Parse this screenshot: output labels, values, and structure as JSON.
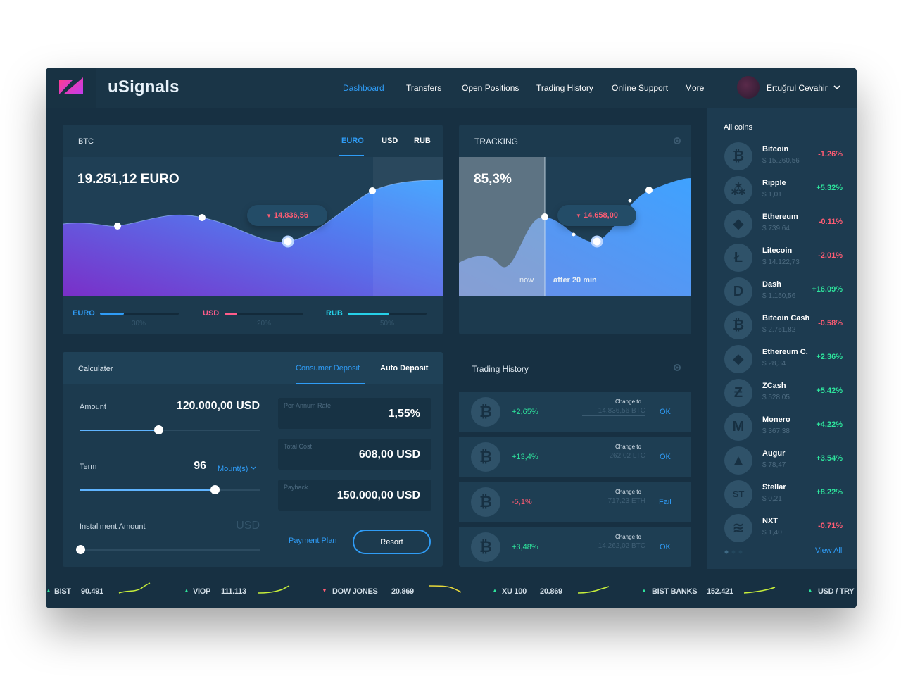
{
  "brand": {
    "name": "uSignals"
  },
  "nav": {
    "items": [
      "Dashboard",
      "Transfers",
      "Open Positions",
      "Trading History",
      "Online Support",
      "More"
    ],
    "user": "Ertuğrul Cevahir"
  },
  "btc_panel": {
    "title": "BTC",
    "tabs": [
      "EURO",
      "USD",
      "RUB"
    ],
    "value": "19.251,12 EURO",
    "tooltip": "14.836,56",
    "tooltip_arrow": "▼",
    "legend": [
      {
        "label": "EURO",
        "percent": "30%",
        "fill": 0.3,
        "color": "#2f9cf6"
      },
      {
        "label": "USD",
        "percent": "20%",
        "fill": 0.2,
        "color": "#ff5c8a"
      },
      {
        "label": "RUB",
        "percent": "50%",
        "fill": 0.5,
        "color": "#26d0e8"
      }
    ]
  },
  "tracking": {
    "title": "TRACKING",
    "value": "85,3%",
    "tooltip": "14.658,00",
    "tooltip_arrow": "▼",
    "now_label": "now",
    "after_label": "after 20 min"
  },
  "calculator": {
    "title": "Calculater",
    "tabs": [
      "Consumer Deposit",
      "Auto Deposit"
    ],
    "amount_label": "Amount",
    "amount_value": "120.000,00 USD",
    "amount_slider": 0.44,
    "term_label": "Term",
    "term_value": "96",
    "term_unit": "Mount(s)",
    "term_slider": 0.75,
    "installment_label": "Installment Amount",
    "installment_placeholder": "USD",
    "installment_slider": 0.0,
    "rate_label": "Per-Annum Rate",
    "rate_value": "1,55%",
    "cost_label": "Total Cost",
    "cost_value": "608,00 USD",
    "payback_label": "Payback",
    "payback_value": "150.000,00 USD",
    "payment_plan": "Payment Plan",
    "resort": "Resort"
  },
  "trading_history": {
    "title": "Trading History",
    "rows": [
      {
        "change": "+2,65%",
        "label": "Change to",
        "amount": "14.836,56 BTC",
        "status": "OK",
        "color": "#2ee59d"
      },
      {
        "change": "+13,4%",
        "label": "Change to",
        "amount": "262,02 LTC",
        "status": "OK",
        "color": "#2ee59d"
      },
      {
        "change": "-5,1%",
        "label": "Change to",
        "amount": "717,23 ETH",
        "status": "Fail",
        "color": "#ff5c73"
      },
      {
        "change": "+3,48%",
        "label": "Change to",
        "amount": "14.262,02 BTC",
        "status": "OK",
        "color": "#2ee59d"
      }
    ]
  },
  "coins": {
    "title": "All coins",
    "view_all": "View All",
    "items": [
      {
        "name": "Bitcoin",
        "price": "$ 15.260,56",
        "change": "-1.26%",
        "icon": "bitcoin-icon",
        "glyph": "₿",
        "color": "#ff5c73"
      },
      {
        "name": "Ripple",
        "price": "$ 1,01",
        "change": "+5.32%",
        "icon": "ripple-icon",
        "glyph": "⁂",
        "color": "#2ee59d"
      },
      {
        "name": "Ethereum",
        "price": "$ 739,64",
        "change": "-0.11%",
        "icon": "ethereum-icon",
        "glyph": "◆",
        "color": "#ff5c73"
      },
      {
        "name": "Litecoin",
        "price": "$ 14.122,73",
        "change": "-2.01%",
        "icon": "litecoin-icon",
        "glyph": "Ł",
        "color": "#ff5c73"
      },
      {
        "name": "Dash",
        "price": "$ 1.150,56",
        "change": "+16.09%",
        "icon": "dash-icon",
        "glyph": "D",
        "color": "#2ee59d"
      },
      {
        "name": "Bitcoin Cash",
        "price": "$ 2.761,82",
        "change": "-0.58%",
        "icon": "bitcoin-cash-icon",
        "glyph": "₿",
        "color": "#ff5c73"
      },
      {
        "name": "Ethereum C.",
        "price": "$ 28,34",
        "change": "+2.36%",
        "icon": "ethereum-classic-icon",
        "glyph": "◆",
        "color": "#2ee59d"
      },
      {
        "name": "ZCash",
        "price": "$ 528,05",
        "change": "+5.42%",
        "icon": "zcash-icon",
        "glyph": "Ƶ",
        "color": "#2ee59d"
      },
      {
        "name": "Monero",
        "price": "$ 367,38",
        "change": "+4.22%",
        "icon": "monero-icon",
        "glyph": "M",
        "color": "#2ee59d"
      },
      {
        "name": "Augur",
        "price": "$ 78,47",
        "change": "+3.54%",
        "icon": "augur-icon",
        "glyph": "▲",
        "color": "#2ee59d"
      },
      {
        "name": "Stellar",
        "price": "$ 0,21",
        "change": "+8.22%",
        "icon": "stellar-icon",
        "glyph": "ST",
        "color": "#2ee59d"
      },
      {
        "name": "NXT",
        "price": "$ 1,40",
        "change": "-0.71%",
        "icon": "nxt-icon",
        "glyph": "≋",
        "color": "#ff5c73"
      }
    ]
  },
  "ticker": [
    {
      "name": "BIST",
      "value": "90.491",
      "dir": "up"
    },
    {
      "name": "VIOP",
      "value": "111.113",
      "dir": "up"
    },
    {
      "name": "DOW JONES",
      "value": "20.869",
      "dir": "down"
    },
    {
      "name": "XU 100",
      "value": "20.869",
      "dir": "up"
    },
    {
      "name": "BIST BANKS",
      "value": "152.421",
      "dir": "up"
    },
    {
      "name": "USD / TRY",
      "value": "",
      "dir": "up"
    }
  ],
  "colors": {
    "accent": "#2f9cf6",
    "positive": "#2ee59d",
    "negative": "#ff5c73"
  }
}
